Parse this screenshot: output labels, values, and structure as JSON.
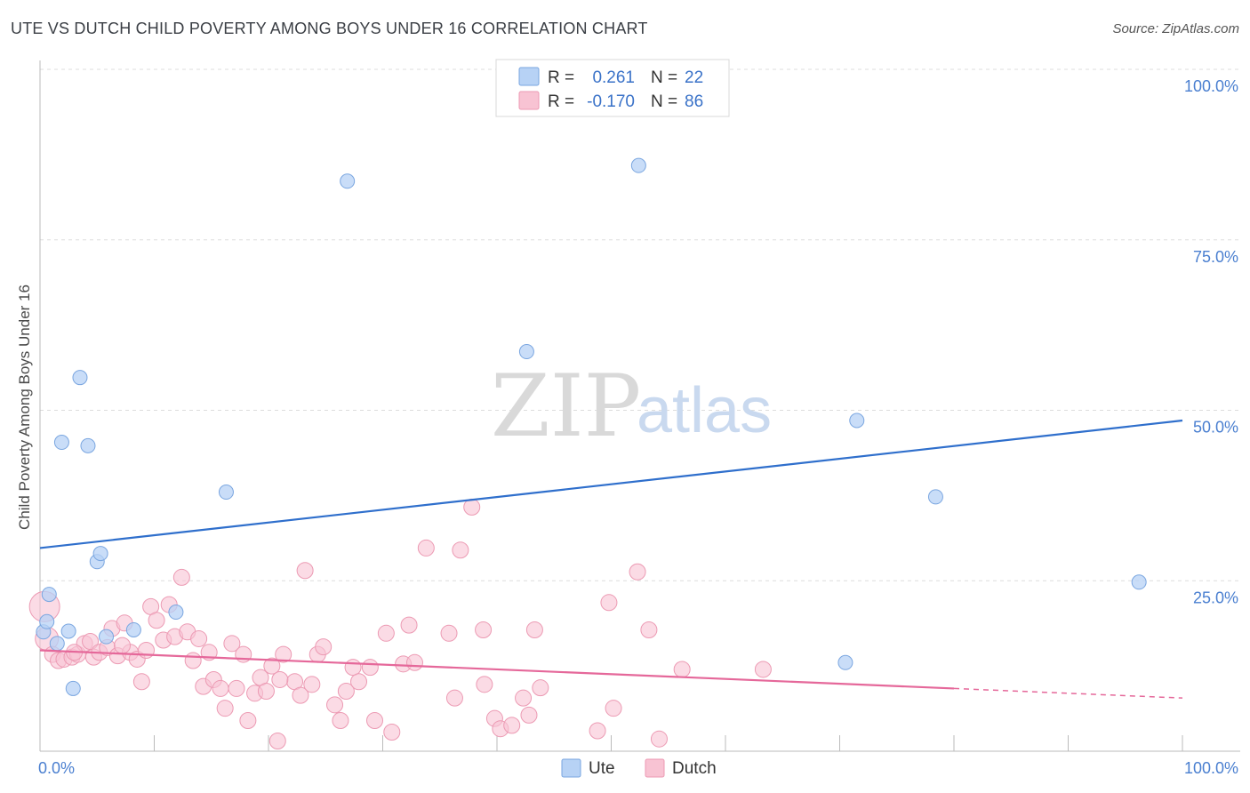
{
  "title": "UTE VS DUTCH CHILD POVERTY AMONG BOYS UNDER 16 CORRELATION CHART",
  "source": "Source: ZipAtlas.com",
  "watermark": {
    "zip": "ZIP",
    "atlas": "atlas"
  },
  "legend": {
    "rows": [
      {
        "r_label": "R =",
        "r_value": "0.261",
        "n_label": "N =",
        "n_value": "22"
      },
      {
        "r_label": "R =",
        "r_value": "-0.170",
        "n_label": "N =",
        "n_value": "86"
      }
    ]
  },
  "bottom_legend": {
    "ute": "Ute",
    "dutch": "Dutch"
  },
  "colors": {
    "ute_fill": "#b7d2f5",
    "ute_stroke": "#7aa6e0",
    "ute_line": "#2f6fcc",
    "dutch_fill": "#f8c3d3",
    "dutch_stroke": "#ec9ab3",
    "dutch_line": "#e5689a",
    "tick_text": "#4a7fd0",
    "grid": "#dddddd"
  },
  "chart_data": {
    "type": "scatter",
    "title": "UTE VS DUTCH CHILD POVERTY AMONG BOYS UNDER 16 CORRELATION CHART",
    "xlabel": "",
    "ylabel": "Child Poverty Among Boys Under 16",
    "xlim": [
      0,
      100
    ],
    "ylim": [
      0,
      100
    ],
    "x_tick_labels": [
      "0.0%",
      "100.0%"
    ],
    "y_ticks": [
      {
        "value": 25,
        "label": "25.0%"
      },
      {
        "value": 50,
        "label": "50.0%"
      },
      {
        "value": 75,
        "label": "75.0%"
      },
      {
        "value": 100,
        "label": "100.0%"
      }
    ],
    "grid": "horizontal dashed",
    "series": [
      {
        "name": "Ute",
        "points": [
          [
            0.3,
            17.5
          ],
          [
            1.5,
            15.8
          ],
          [
            0.8,
            23
          ],
          [
            2.5,
            17.6
          ],
          [
            2.9,
            9.2
          ],
          [
            1.9,
            45.3
          ],
          [
            3.5,
            54.8
          ],
          [
            4.2,
            44.8
          ],
          [
            5.0,
            27.8
          ],
          [
            5.3,
            29.0
          ],
          [
            5.8,
            16.8
          ],
          [
            8.2,
            17.8
          ],
          [
            11.9,
            20.4
          ],
          [
            16.3,
            38.0
          ],
          [
            26.9,
            83.6
          ],
          [
            42.6,
            58.6
          ],
          [
            52.4,
            85.9
          ],
          [
            70.5,
            13.0
          ],
          [
            71.5,
            48.5
          ],
          [
            78.4,
            37.3
          ],
          [
            96.2,
            24.8
          ],
          [
            0.6,
            19.0
          ]
        ],
        "trend": {
          "x": [
            0,
            100
          ],
          "y": [
            29.8,
            48.5
          ]
        }
      },
      {
        "name": "Dutch",
        "points": [
          [
            0.4,
            21.2
          ],
          [
            0.6,
            16.5
          ],
          [
            1.1,
            14.2
          ],
          [
            1.6,
            13.3
          ],
          [
            2.1,
            13.5
          ],
          [
            2.8,
            13.8
          ],
          [
            3.3,
            14.2
          ],
          [
            3.9,
            15.8
          ],
          [
            4.4,
            16.1
          ],
          [
            4.7,
            13.8
          ],
          [
            5.2,
            14.5
          ],
          [
            5.9,
            15.2
          ],
          [
            6.3,
            18.0
          ],
          [
            6.8,
            14.0
          ],
          [
            7.4,
            18.8
          ],
          [
            7.9,
            14.5
          ],
          [
            8.5,
            13.5
          ],
          [
            8.9,
            10.2
          ],
          [
            9.3,
            14.8
          ],
          [
            9.7,
            21.2
          ],
          [
            10.2,
            19.2
          ],
          [
            10.8,
            16.3
          ],
          [
            11.3,
            21.5
          ],
          [
            11.8,
            16.8
          ],
          [
            12.4,
            25.5
          ],
          [
            12.9,
            17.5
          ],
          [
            13.4,
            13.3
          ],
          [
            13.9,
            16.5
          ],
          [
            14.3,
            9.5
          ],
          [
            14.8,
            14.5
          ],
          [
            15.2,
            10.5
          ],
          [
            15.8,
            9.2
          ],
          [
            16.2,
            6.3
          ],
          [
            16.8,
            15.8
          ],
          [
            17.2,
            9.2
          ],
          [
            17.8,
            14.2
          ],
          [
            18.2,
            4.5
          ],
          [
            18.8,
            8.5
          ],
          [
            19.3,
            10.8
          ],
          [
            19.8,
            8.8
          ],
          [
            20.3,
            12.5
          ],
          [
            20.8,
            1.5
          ],
          [
            21.3,
            14.2
          ],
          [
            22.3,
            10.2
          ],
          [
            22.8,
            8.2
          ],
          [
            23.2,
            26.5
          ],
          [
            23.8,
            9.8
          ],
          [
            24.3,
            14.2
          ],
          [
            24.8,
            15.3
          ],
          [
            25.8,
            6.8
          ],
          [
            26.3,
            4.5
          ],
          [
            26.8,
            8.8
          ],
          [
            27.4,
            12.3
          ],
          [
            27.9,
            10.2
          ],
          [
            28.9,
            12.3
          ],
          [
            29.3,
            4.5
          ],
          [
            30.3,
            17.3
          ],
          [
            30.8,
            2.8
          ],
          [
            31.8,
            12.8
          ],
          [
            32.3,
            18.5
          ],
          [
            32.8,
            13.0
          ],
          [
            33.8,
            29.8
          ],
          [
            35.8,
            17.3
          ],
          [
            36.3,
            7.8
          ],
          [
            36.8,
            29.5
          ],
          [
            37.8,
            35.8
          ],
          [
            38.8,
            17.8
          ],
          [
            38.9,
            9.8
          ],
          [
            39.8,
            4.8
          ],
          [
            40.3,
            3.3
          ],
          [
            41.3,
            3.8
          ],
          [
            42.3,
            7.8
          ],
          [
            42.8,
            5.3
          ],
          [
            43.3,
            17.8
          ],
          [
            43.8,
            9.3
          ],
          [
            48.8,
            3.0
          ],
          [
            49.8,
            21.8
          ],
          [
            50.2,
            6.3
          ],
          [
            52.3,
            26.3
          ],
          [
            53.3,
            17.8
          ],
          [
            54.2,
            1.8
          ],
          [
            56.2,
            12.0
          ],
          [
            63.3,
            12.0
          ],
          [
            21.0,
            10.5
          ],
          [
            7.2,
            15.5
          ],
          [
            3.0,
            14.5
          ]
        ],
        "trend": {
          "x": [
            0,
            80
          ],
          "y": [
            14.8,
            9.2
          ],
          "dashed_to": {
            "x": 100,
            "y": 7.8
          }
        }
      }
    ]
  }
}
